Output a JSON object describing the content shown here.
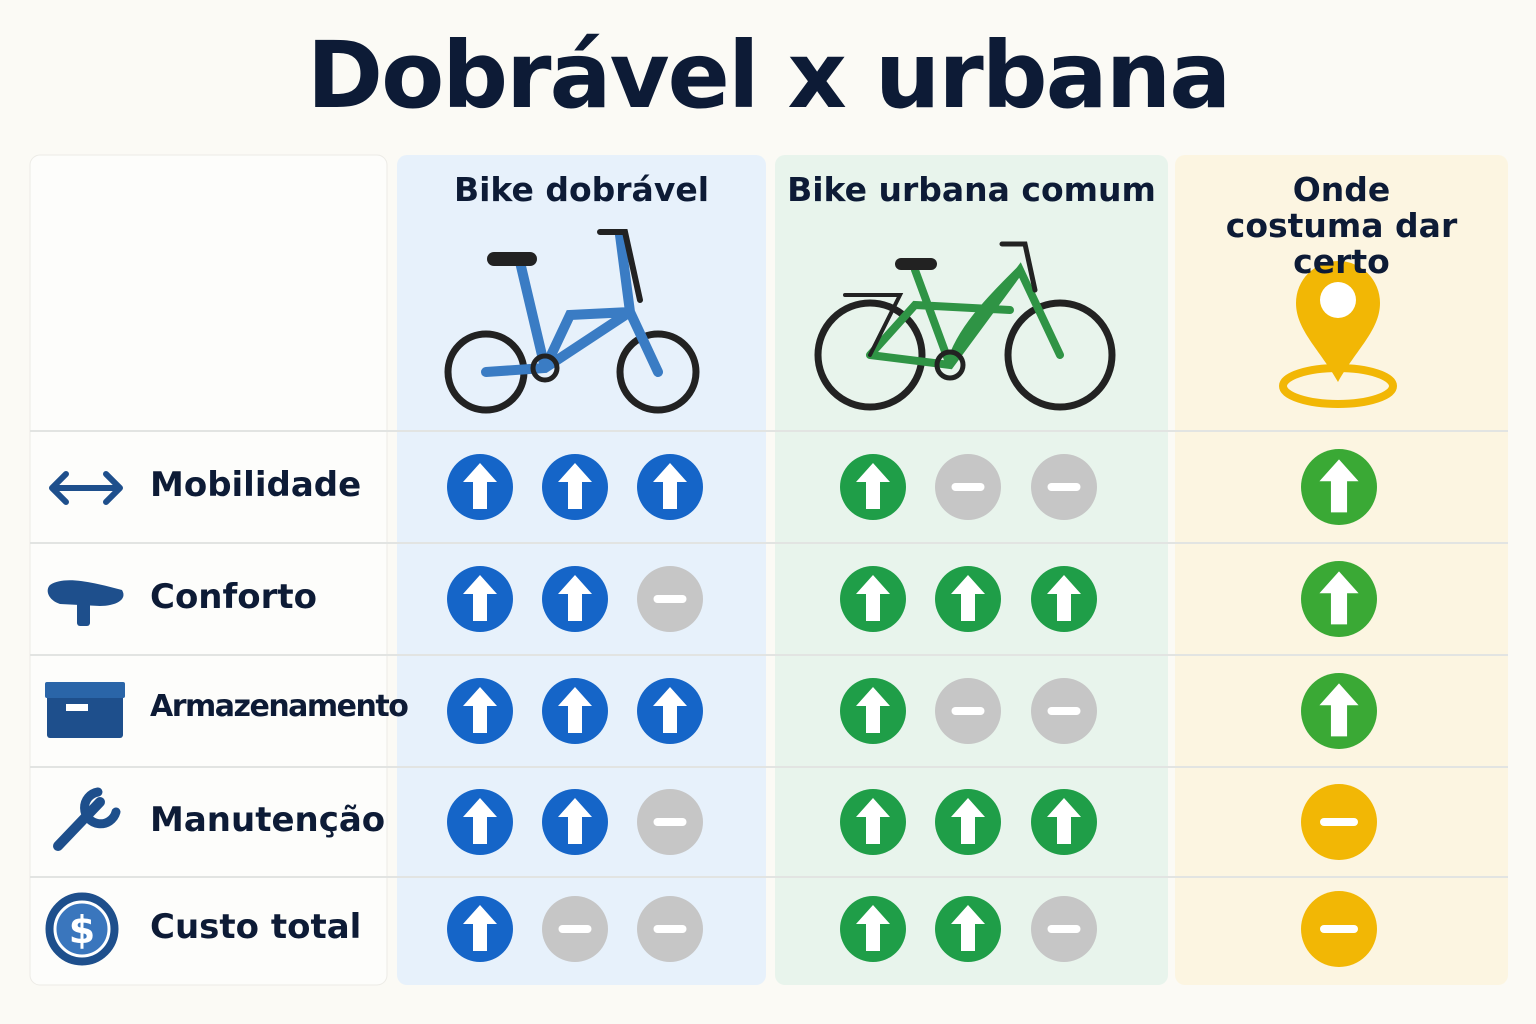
{
  "title": "Dobrável x urbana",
  "columns": [
    {
      "label": "Bike dobrável",
      "colors": {
        "up": "#1565c8",
        "neutral": "#c6c6c6"
      }
    },
    {
      "label": "Bike urbana comum",
      "colors": {
        "up": "#1f9e48",
        "neutral": "#c6c6c6"
      }
    },
    {
      "label": "Onde costuma dar certo",
      "colors": {
        "up": "#3aa935",
        "neutral": "#f2b705"
      }
    }
  ],
  "rows": [
    {
      "label": "Mobilidade",
      "ratings": [
        [
          "up",
          "up",
          "up"
        ],
        [
          "up",
          "neutral",
          "neutral"
        ],
        [
          "up"
        ]
      ]
    },
    {
      "label": "Conforto",
      "ratings": [
        [
          "up",
          "up",
          "neutral"
        ],
        [
          "up",
          "up",
          "up"
        ],
        [
          "up"
        ]
      ]
    },
    {
      "label": "Armazenamento",
      "ratings": [
        [
          "up",
          "up",
          "up"
        ],
        [
          "up",
          "neutral",
          "neutral"
        ],
        [
          "up"
        ]
      ]
    },
    {
      "label": "Manutenção",
      "ratings": [
        [
          "up",
          "up",
          "neutral"
        ],
        [
          "up",
          "up",
          "up"
        ],
        [
          "neutral"
        ]
      ]
    },
    {
      "label": "Custo total",
      "ratings": [
        [
          "up",
          "neutral",
          "neutral"
        ],
        [
          "up",
          "up",
          "neutral"
        ],
        [
          "neutral"
        ]
      ]
    }
  ]
}
